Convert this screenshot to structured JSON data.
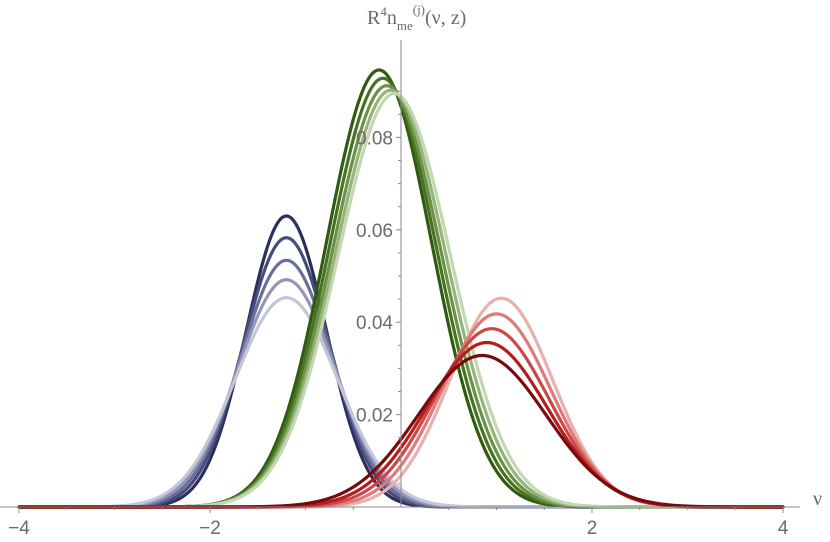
{
  "chart_data": {
    "type": "line",
    "xlabel": "ν",
    "ylabel_parts": {
      "R": "R",
      "sup4": "4",
      "n": "n",
      "sub": "me",
      "sup": "(j)",
      "args": "(ν, z)"
    },
    "xlim": [
      -4,
      4
    ],
    "ylim": [
      0,
      0.095
    ],
    "x_ticks": [
      -4,
      -2,
      2,
      4
    ],
    "x_tick_labels": [
      "−4",
      "−2",
      "2",
      "4"
    ],
    "y_ticks": [
      0.02,
      0.04,
      0.06,
      0.08
    ],
    "y_tick_labels": [
      "0.02",
      "0.04",
      "0.06",
      "0.08"
    ],
    "grid": false,
    "series": [
      {
        "group": "blue",
        "peak": 0.063,
        "mu": -1.2,
        "sigma": 0.42,
        "color": "#2a2f5e"
      },
      {
        "group": "blue",
        "peak": 0.0583,
        "mu": -1.2,
        "sigma": 0.45,
        "color": "#454b7a"
      },
      {
        "group": "blue",
        "peak": 0.0534,
        "mu": -1.2,
        "sigma": 0.48,
        "color": "#6a6f98"
      },
      {
        "group": "blue",
        "peak": 0.0492,
        "mu": -1.2,
        "sigma": 0.51,
        "color": "#9396b8"
      },
      {
        "group": "blue",
        "peak": 0.0453,
        "mu": -1.2,
        "sigma": 0.54,
        "color": "#c3c5da"
      },
      {
        "group": "green",
        "peak": 0.0946,
        "mu": -0.23,
        "sigma": 0.55,
        "color": "#2f5a10"
      },
      {
        "group": "green",
        "peak": 0.0928,
        "mu": -0.19,
        "sigma": 0.56,
        "color": "#46731f"
      },
      {
        "group": "green",
        "peak": 0.0912,
        "mu": -0.15,
        "sigma": 0.57,
        "color": "#6b9147"
      },
      {
        "group": "green",
        "peak": 0.0902,
        "mu": -0.11,
        "sigma": 0.58,
        "color": "#95b47a"
      },
      {
        "group": "green",
        "peak": 0.0895,
        "mu": -0.07,
        "sigma": 0.59,
        "color": "#c3d8b2"
      },
      {
        "group": "red",
        "peak": 0.0452,
        "mu": 1.05,
        "sigma": 0.54,
        "color": "#eab0b0"
      },
      {
        "group": "red",
        "peak": 0.0418,
        "mu": 1.0,
        "sigma": 0.57,
        "color": "#dd7a7a"
      },
      {
        "group": "red",
        "peak": 0.0386,
        "mu": 0.95,
        "sigma": 0.6,
        "color": "#cc4848"
      },
      {
        "group": "red",
        "peak": 0.0356,
        "mu": 0.9,
        "sigma": 0.63,
        "color": "#b51c1c"
      },
      {
        "group": "red",
        "peak": 0.0328,
        "mu": 0.85,
        "sigma": 0.67,
        "color": "#7a0a0a"
      }
    ]
  }
}
